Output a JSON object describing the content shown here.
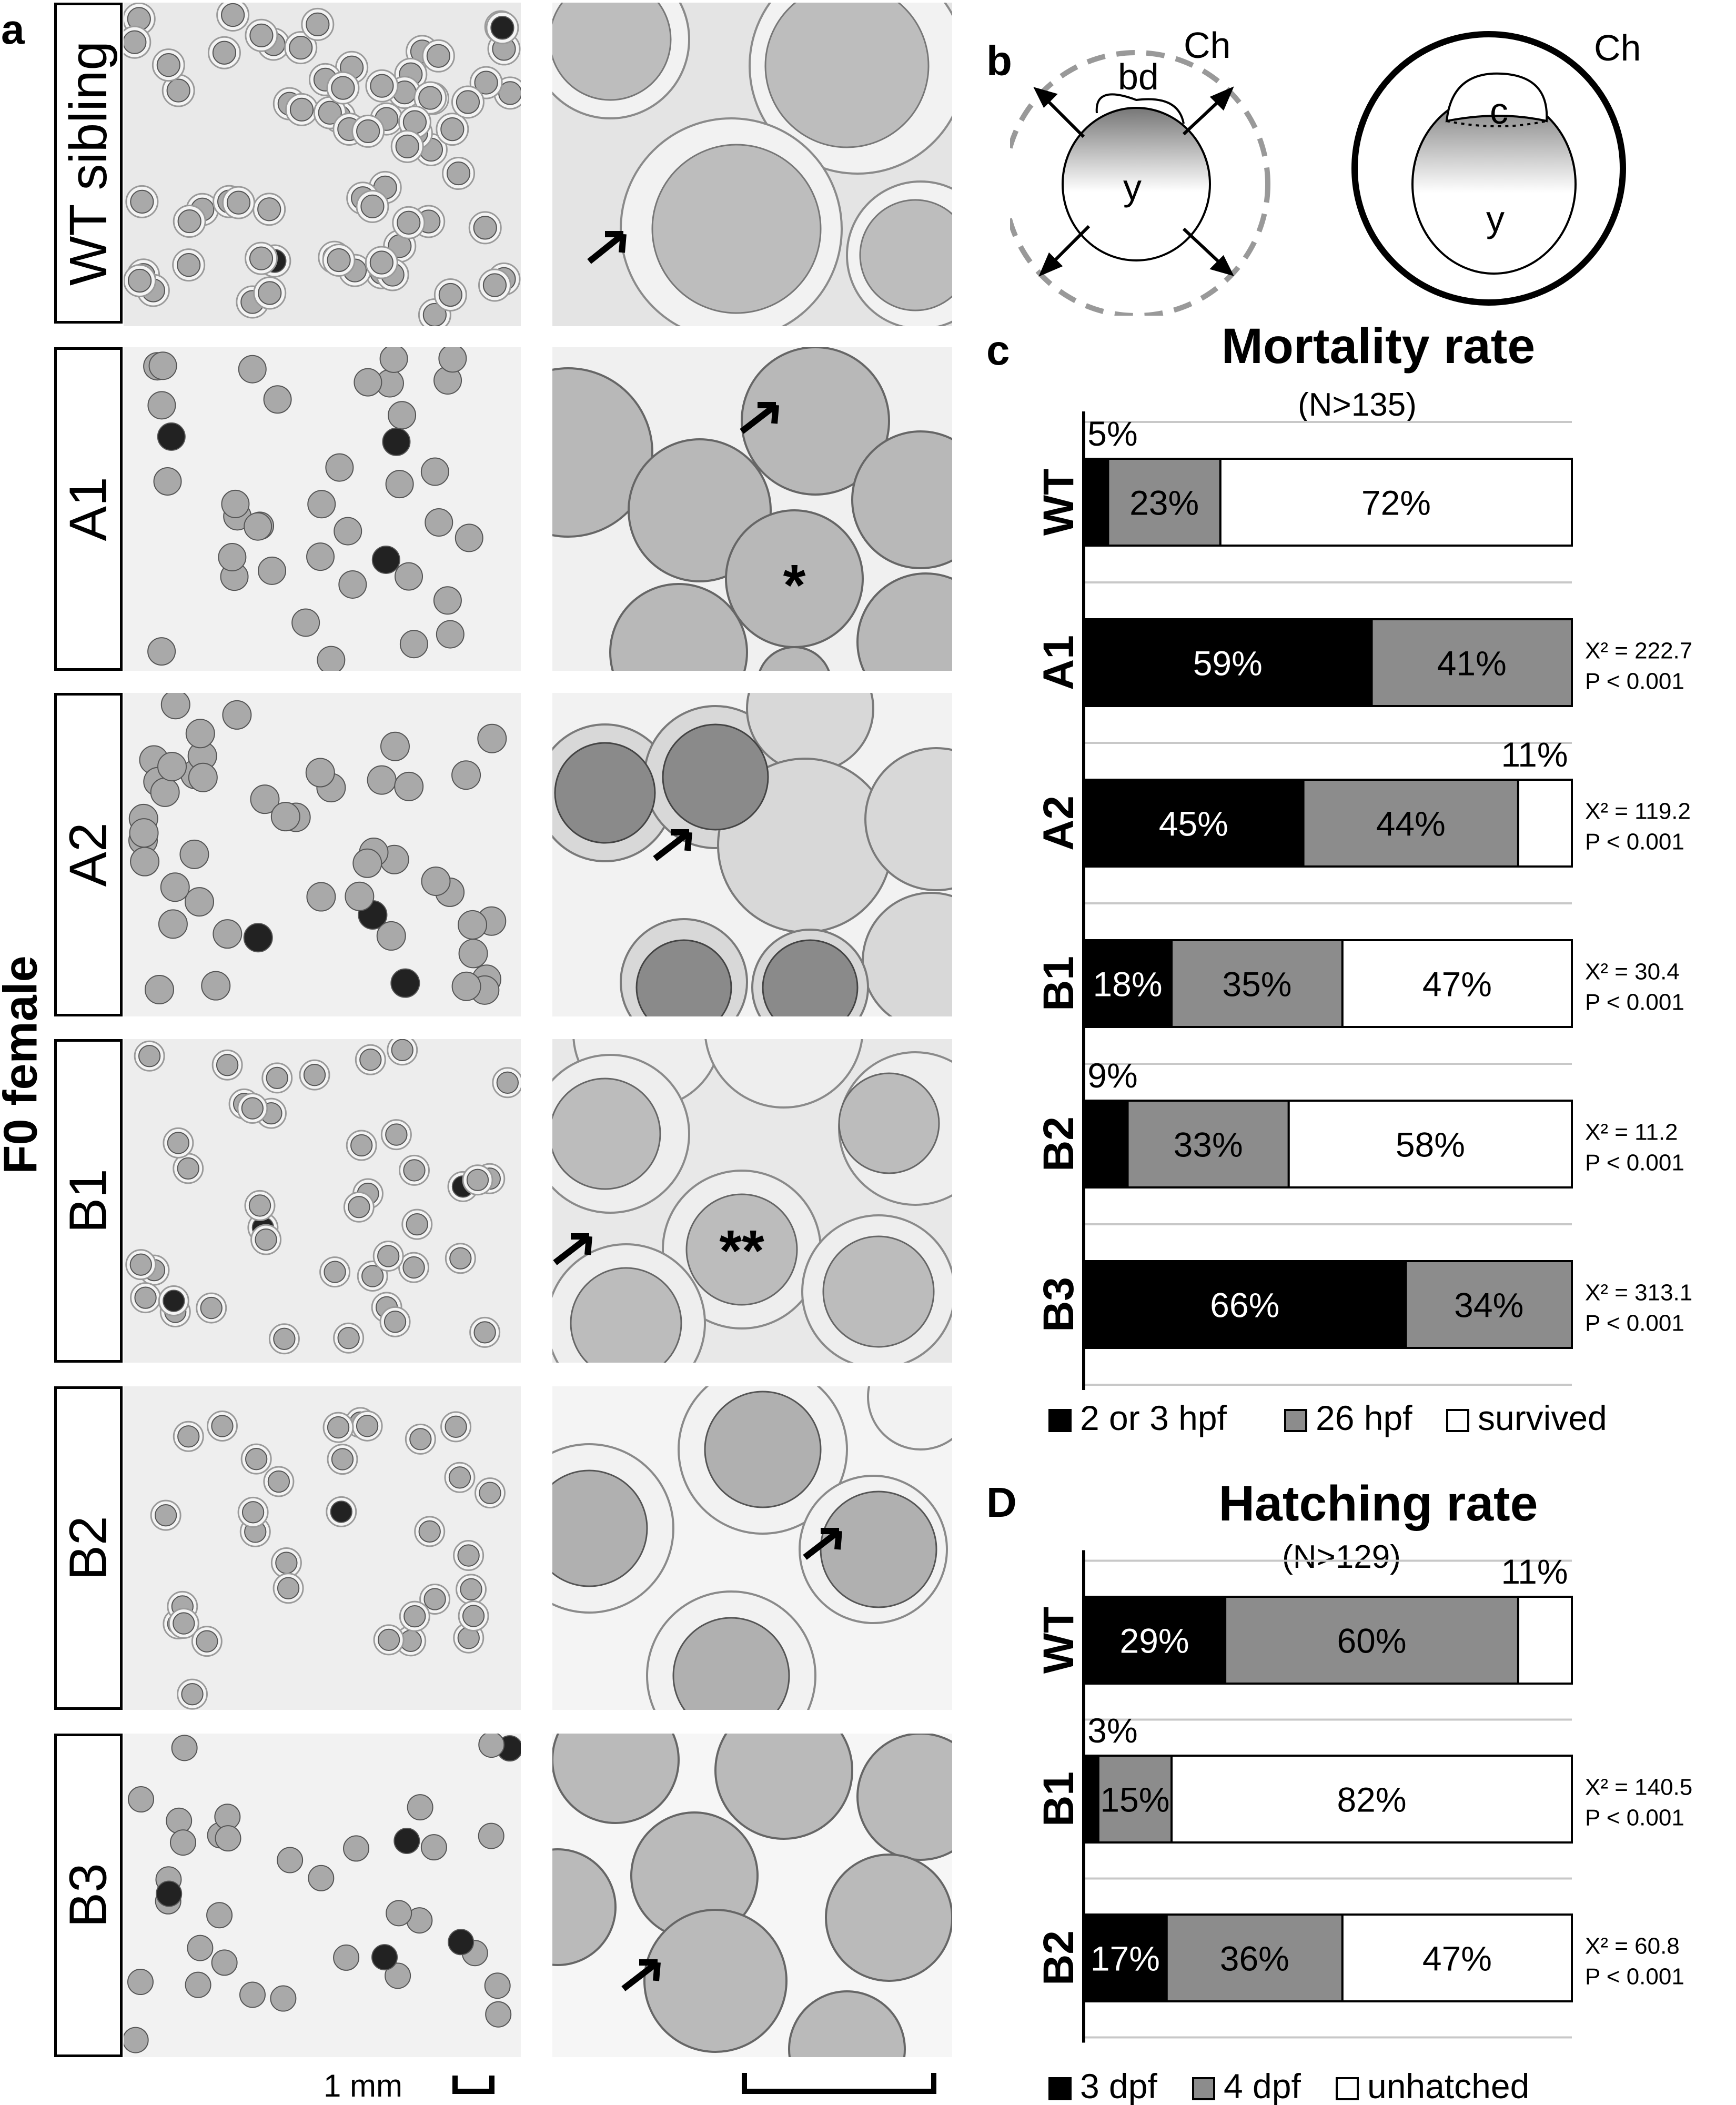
{
  "panel_letters": {
    "a": "a",
    "b": "b",
    "c": "c",
    "d": "D"
  },
  "side_label": "F0 female",
  "row_labels": [
    "WT sibling",
    "A1",
    "A2",
    "B1",
    "B2",
    "B3"
  ],
  "scale_label": "1 mm",
  "right_photo_marks": {
    "asterisk_single": "*",
    "asterisk_double": "**"
  },
  "diagram": {
    "left": {
      "ch": "Ch",
      "bd": "bd",
      "y": "y"
    },
    "right": {
      "ch": "Ch",
      "c": "c",
      "y": "y"
    }
  },
  "colors": {
    "black": "#000000",
    "gray": "#8c8c8c",
    "white": "#ffffff",
    "grid": "#c8c8c8"
  },
  "chart_data": [
    {
      "type": "bar",
      "orientation": "horizontal-stacked-100",
      "title": "Mortality rate",
      "subtitle": "(N>135)",
      "categories": [
        "WT",
        "A1",
        "A2",
        "B1",
        "B2",
        "B3"
      ],
      "series": [
        {
          "name": "2 or 3 hpf",
          "color": "#000000",
          "values": [
            5,
            59,
            45,
            18,
            9,
            66
          ]
        },
        {
          "name": "26 hpf",
          "color": "#8c8c8c",
          "values": [
            23,
            41,
            44,
            35,
            33,
            34
          ]
        },
        {
          "name": "survived",
          "color": "#ffffff",
          "values": [
            72,
            0,
            11,
            47,
            58,
            0
          ]
        }
      ],
      "labels": [
        [
          "5%",
          "23%",
          "72%"
        ],
        [
          "59%",
          "41%",
          ""
        ],
        [
          "45%",
          "44%",
          "11%"
        ],
        [
          "18%",
          "35%",
          "47%"
        ],
        [
          "9%",
          "33%",
          "58%"
        ],
        [
          "66%",
          "34%",
          ""
        ]
      ],
      "stats": [
        null,
        {
          "chi": "X² = 222.7",
          "p": "P < 0.001"
        },
        {
          "chi": "X² = 119.2",
          "p": "P < 0.001"
        },
        {
          "chi": "X² = 30.4",
          "p": "P < 0.001"
        },
        {
          "chi": "X² = 11.2",
          "p": "P < 0.001"
        },
        {
          "chi": "X² = 313.1",
          "p": "P < 0.001"
        }
      ],
      "legend_position": "bottom"
    },
    {
      "type": "bar",
      "orientation": "horizontal-stacked-100",
      "title": "Hatching rate",
      "subtitle": "(N>129)",
      "categories": [
        "WT",
        "B1",
        "B2"
      ],
      "series": [
        {
          "name": "3 dpf",
          "color": "#000000",
          "values": [
            29,
            3,
            17
          ]
        },
        {
          "name": "4 dpf",
          "color": "#8c8c8c",
          "values": [
            60,
            15,
            36
          ]
        },
        {
          "name": "unhatched",
          "color": "#ffffff",
          "values": [
            11,
            82,
            47
          ]
        }
      ],
      "labels": [
        [
          "29%",
          "60%",
          "11%"
        ],
        [
          "3%",
          "15%",
          "82%"
        ],
        [
          "17%",
          "36%",
          "47%"
        ]
      ],
      "stats": [
        null,
        {
          "chi": "X² = 140.5",
          "p": "P < 0.001"
        },
        {
          "chi": "X² = 60.8",
          "p": "P < 0.001"
        }
      ],
      "legend_position": "bottom"
    }
  ]
}
